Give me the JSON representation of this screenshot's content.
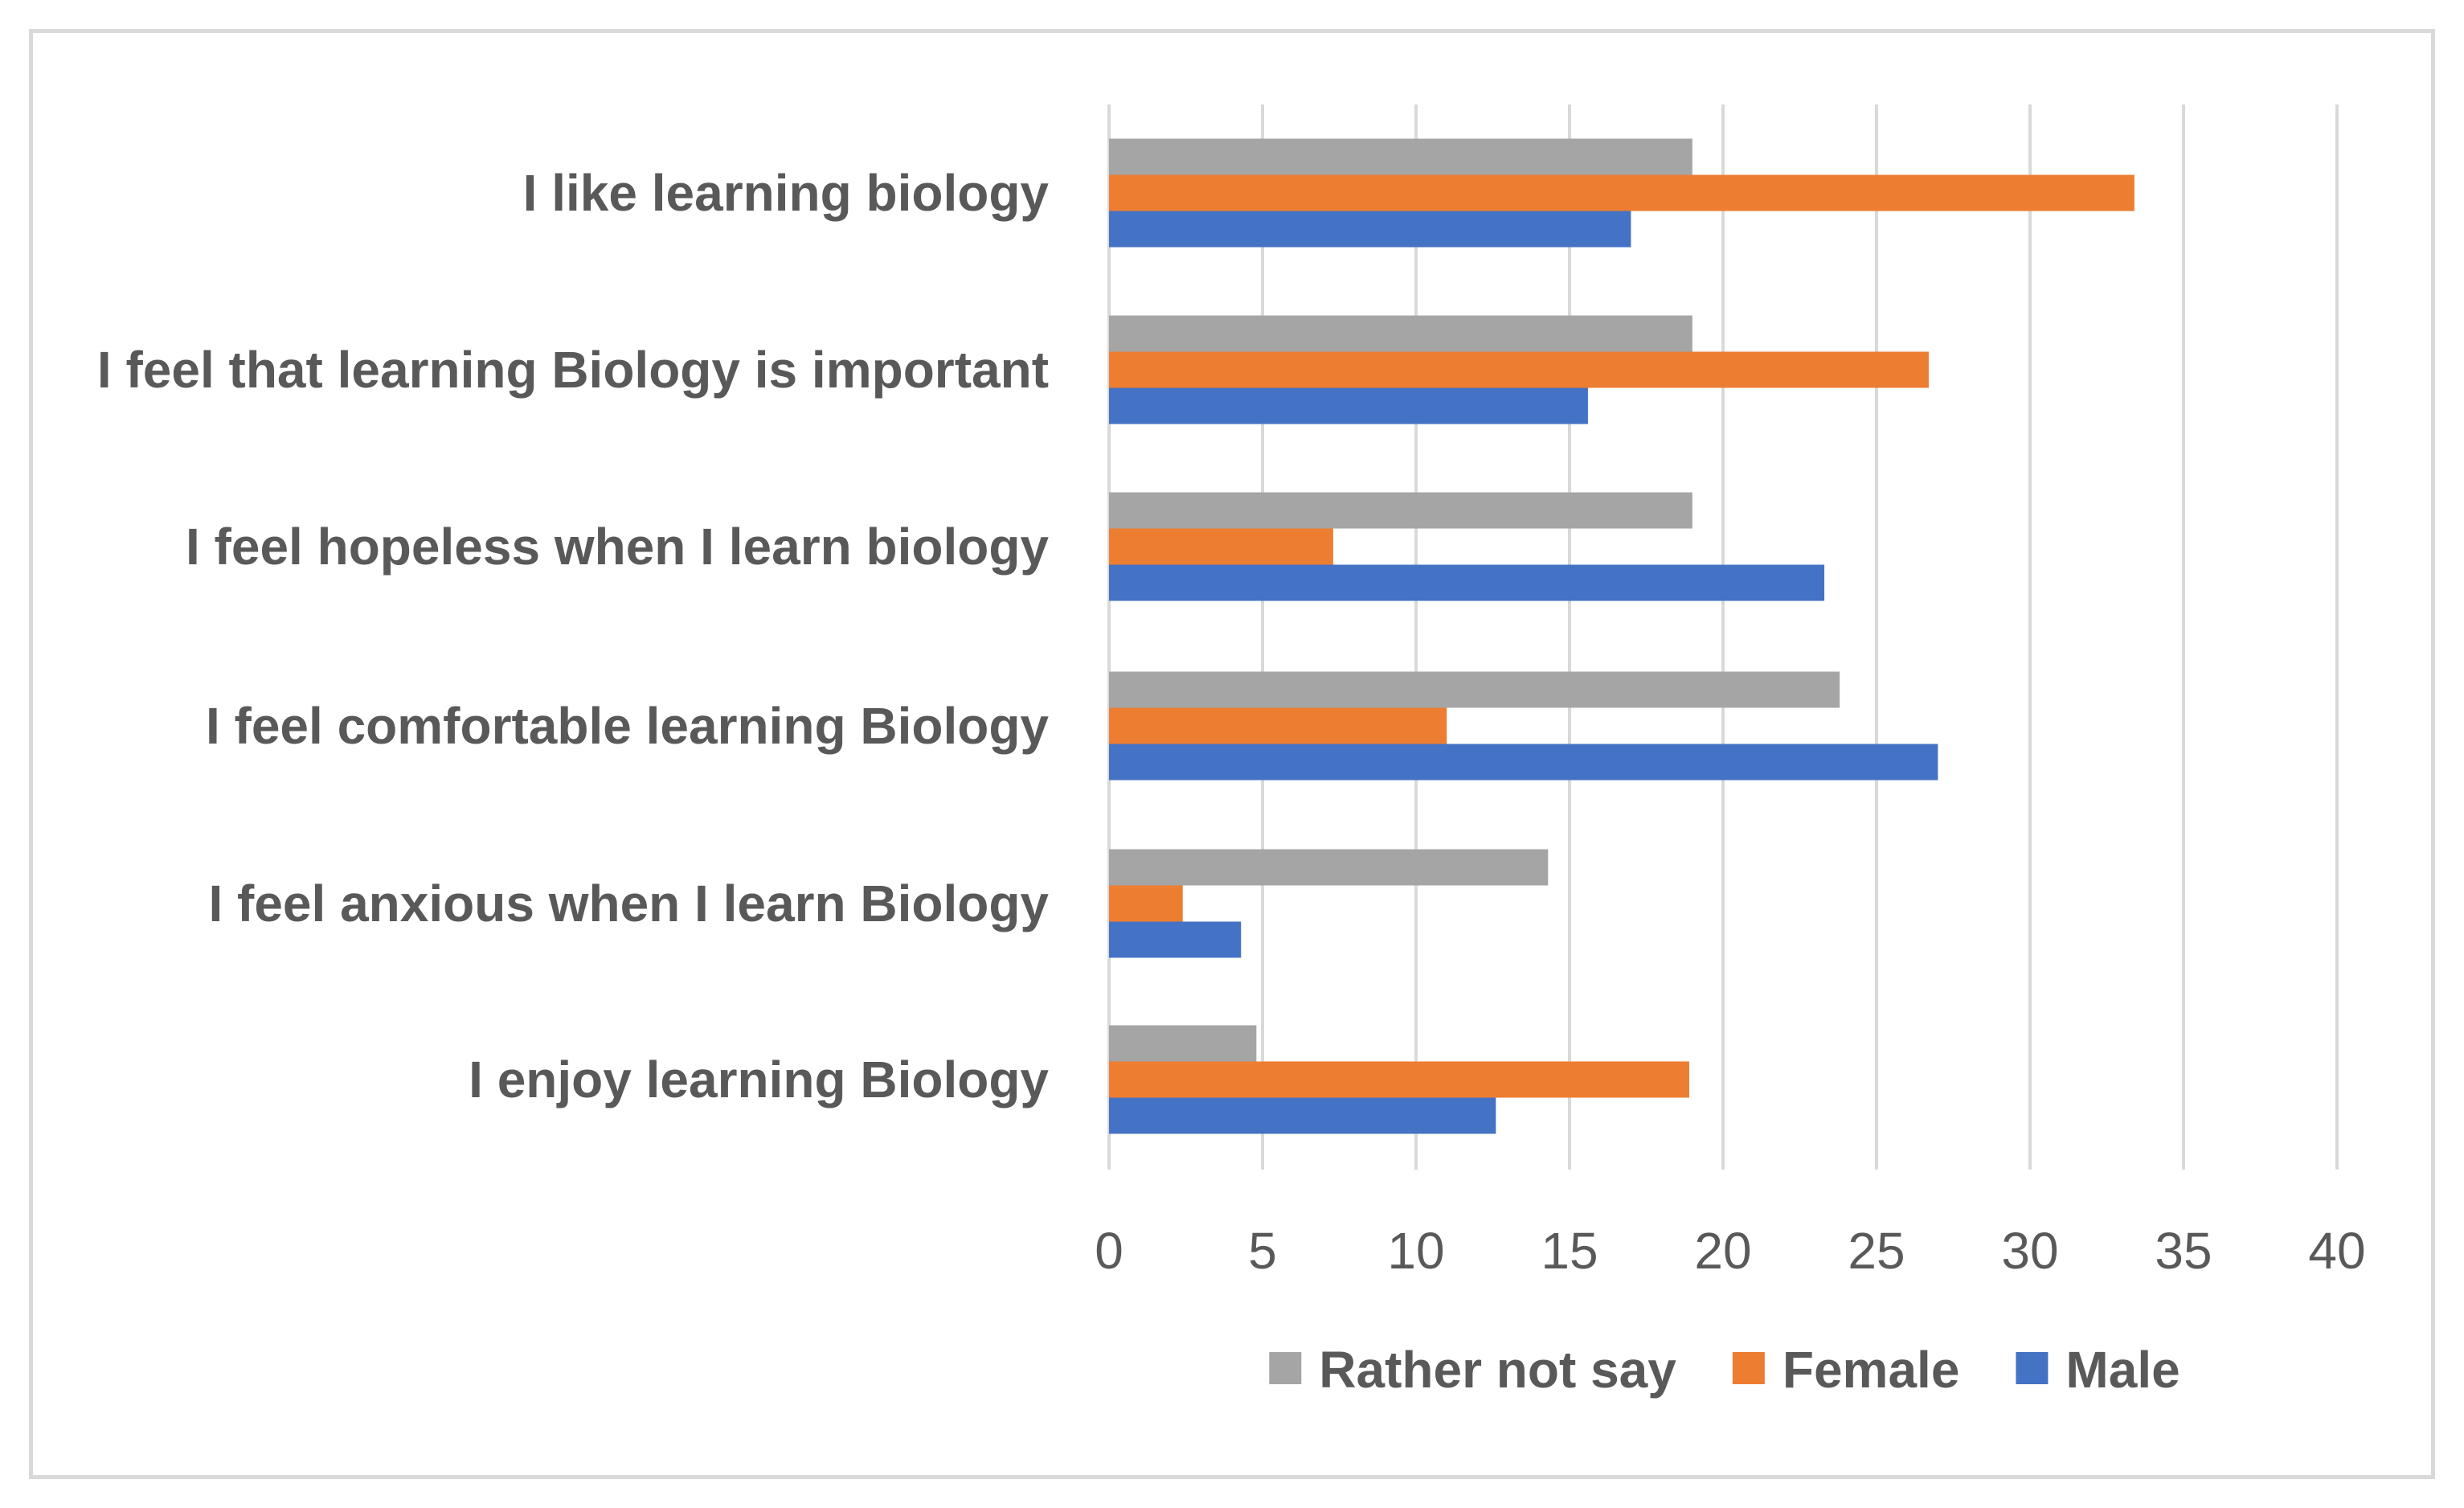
{
  "chart_data": {
    "type": "bar",
    "orientation": "horizontal",
    "categories": [
      "I like learning biology",
      "I feel that learning Biology is important",
      "I feel hopeless when I learn biology",
      "I feel comfortable learning Biology",
      "I feel anxious when I learn Biology",
      "I enjoy learning Biology"
    ],
    "series": [
      {
        "name": "Rather not say",
        "color": "#a5a5a5",
        "values": [
          19,
          19,
          19,
          23.8,
          14.3,
          4.8
        ]
      },
      {
        "name": "Female",
        "color": "#ed7d31",
        "values": [
          33.4,
          26.7,
          7.3,
          11,
          2.4,
          18.9
        ]
      },
      {
        "name": "Male",
        "color": "#4472c4",
        "values": [
          17,
          15.6,
          23.3,
          27,
          4.3,
          12.6
        ]
      }
    ],
    "x_ticks": [
      "0",
      "5",
      "10",
      "15",
      "20",
      "25",
      "30",
      "35",
      "40"
    ],
    "xlim": [
      0,
      40
    ],
    "legend": {
      "position": "bottom",
      "order": [
        "Rather not say",
        "Female",
        "Male"
      ]
    },
    "grid": "vertical",
    "gridline_color": "#d9d9d9",
    "text_color": "#595959"
  }
}
